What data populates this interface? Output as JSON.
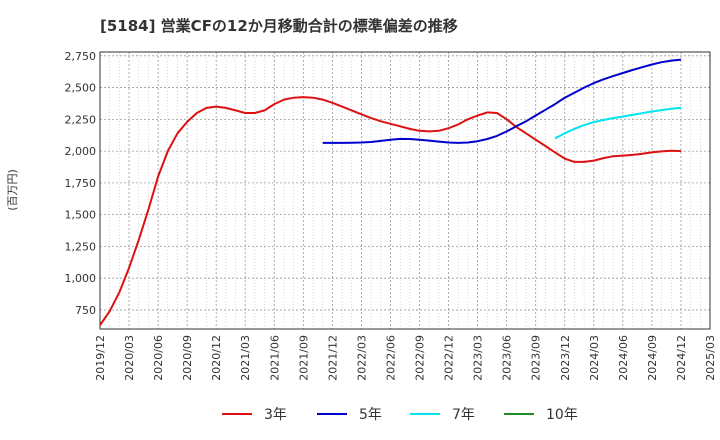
{
  "chart_data": {
    "type": "line",
    "title": "[5184]  営業CFの12か月移動合計の標準偏差の推移",
    "ylabel": "(百万円)",
    "xlabel": "",
    "ylim": [
      600,
      2780
    ],
    "yticks": [
      750,
      1000,
      1250,
      1500,
      1750,
      2000,
      2250,
      2500,
      2750
    ],
    "ytick_labels": [
      "750",
      "1,000",
      "1,250",
      "1,500",
      "1,750",
      "2,000",
      "2,250",
      "2,500",
      "2,750"
    ],
    "x_start": "2019/12",
    "xticks": [
      "2019/12",
      "2020/03",
      "2020/06",
      "2020/09",
      "2020/12",
      "2021/03",
      "2021/06",
      "2021/09",
      "2021/12",
      "2022/03",
      "2022/06",
      "2022/09",
      "2022/12",
      "2023/03",
      "2023/06",
      "2023/09",
      "2023/12",
      "2024/03",
      "2024/06",
      "2024/09",
      "2024/12",
      "2025/03"
    ],
    "grid": true,
    "legend_position": "bottom",
    "series": [
      {
        "name": "3年",
        "color": "#dd1111",
        "x": [
          "2019/12",
          "2020/01",
          "2020/02",
          "2020/03",
          "2020/04",
          "2020/05",
          "2020/06",
          "2020/07",
          "2020/08",
          "2020/09",
          "2020/10",
          "2020/11",
          "2020/12",
          "2021/01",
          "2021/02",
          "2021/03",
          "2021/04",
          "2021/05",
          "2021/06",
          "2021/07",
          "2021/08",
          "2021/09",
          "2021/10",
          "2021/11",
          "2021/12",
          "2022/01",
          "2022/02",
          "2022/03",
          "2022/04",
          "2022/05",
          "2022/06",
          "2022/07",
          "2022/08",
          "2022/09",
          "2022/10",
          "2022/11",
          "2022/12",
          "2023/01",
          "2023/02",
          "2023/03",
          "2023/04",
          "2023/05",
          "2023/06",
          "2023/07",
          "2023/08",
          "2023/09",
          "2023/10",
          "2023/11",
          "2023/12",
          "2024/01",
          "2024/02",
          "2024/03",
          "2024/04",
          "2024/05",
          "2024/06",
          "2024/07",
          "2024/08",
          "2024/09",
          "2024/10",
          "2024/11",
          "2024/12"
        ],
        "values": [
          630,
          740,
          890,
          1080,
          1300,
          1540,
          1800,
          2000,
          2140,
          2230,
          2300,
          2340,
          2350,
          2340,
          2320,
          2300,
          2300,
          2320,
          2370,
          2405,
          2420,
          2425,
          2420,
          2405,
          2380,
          2350,
          2320,
          2290,
          2260,
          2235,
          2215,
          2195,
          2175,
          2160,
          2155,
          2160,
          2180,
          2210,
          2250,
          2280,
          2305,
          2300,
          2250,
          2190,
          2140,
          2090,
          2040,
          1990,
          1940,
          1915,
          1915,
          1925,
          1945,
          1960,
          1965,
          1970,
          1980,
          1990,
          1998,
          2003,
          2000
        ]
      },
      {
        "name": "5年",
        "color": "#0000cc",
        "x": [
          "2021/11",
          "2021/12",
          "2022/01",
          "2022/02",
          "2022/03",
          "2022/04",
          "2022/05",
          "2022/06",
          "2022/07",
          "2022/08",
          "2022/09",
          "2022/10",
          "2022/11",
          "2022/12",
          "2023/01",
          "2023/02",
          "2023/03",
          "2023/04",
          "2023/05",
          "2023/06",
          "2023/07",
          "2023/08",
          "2023/09",
          "2023/10",
          "2023/11",
          "2023/12",
          "2024/01",
          "2024/02",
          "2024/03",
          "2024/04",
          "2024/05",
          "2024/06",
          "2024/07",
          "2024/08",
          "2024/09",
          "2024/10",
          "2024/11",
          "2024/12"
        ],
        "values": [
          2065,
          2065,
          2065,
          2066,
          2068,
          2072,
          2080,
          2090,
          2096,
          2095,
          2090,
          2083,
          2075,
          2068,
          2065,
          2068,
          2078,
          2095,
          2120,
          2155,
          2195,
          2235,
          2280,
          2325,
          2370,
          2420,
          2460,
          2500,
          2535,
          2565,
          2590,
          2615,
          2638,
          2660,
          2682,
          2700,
          2712,
          2720
        ]
      },
      {
        "name": "7年",
        "color": "#00e5ee",
        "x": [
          "2023/11",
          "2023/12",
          "2024/01",
          "2024/02",
          "2024/03",
          "2024/04",
          "2024/05",
          "2024/06",
          "2024/07",
          "2024/08",
          "2024/09",
          "2024/10",
          "2024/11",
          "2024/12"
        ],
        "values": [
          2100,
          2140,
          2175,
          2205,
          2228,
          2245,
          2260,
          2272,
          2285,
          2298,
          2312,
          2323,
          2333,
          2342
        ]
      },
      {
        "name": "10年",
        "color": "#228b22",
        "x": [],
        "values": []
      }
    ]
  }
}
